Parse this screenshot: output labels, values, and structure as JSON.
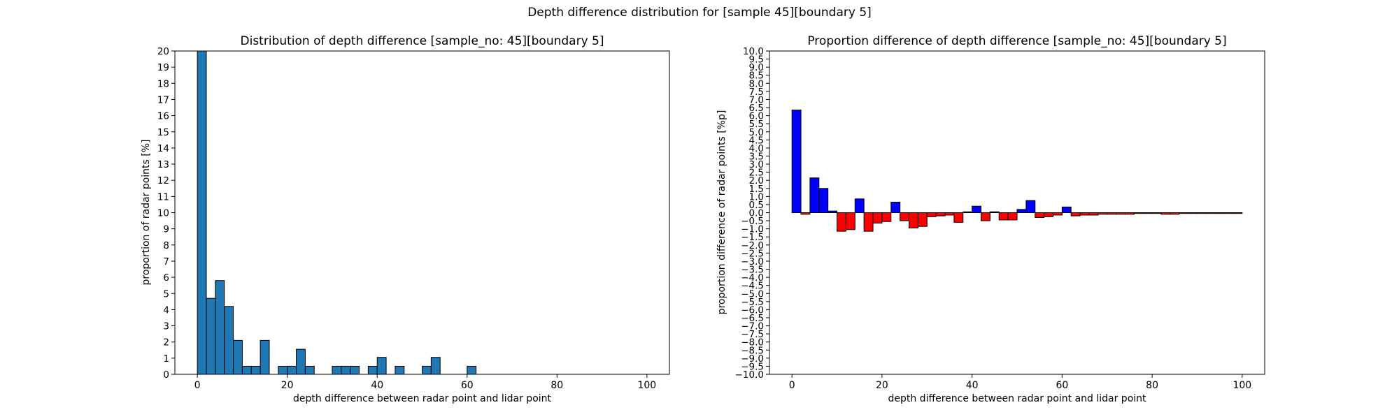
{
  "figure": {
    "suptitle": "Depth difference distribution for [sample 45][boundary 5]"
  },
  "chart_data": [
    {
      "type": "bar",
      "title": "Distribution of depth difference [sample_no: 45][boundary 5]",
      "xlabel": "depth difference between radar point and lidar point",
      "ylabel": "proportion of radar points [%]",
      "xlim": [
        -5,
        105
      ],
      "ylim": [
        0,
        20
      ],
      "xticks": [
        0,
        20,
        40,
        60,
        80,
        100
      ],
      "yticks": [
        0,
        1,
        2,
        3,
        4,
        5,
        6,
        7,
        8,
        9,
        10,
        11,
        12,
        13,
        14,
        15,
        16,
        17,
        18,
        19,
        20
      ],
      "bin_width": 2,
      "bin_starts": [
        0,
        2,
        4,
        6,
        8,
        10,
        12,
        14,
        16,
        18,
        20,
        22,
        24,
        26,
        28,
        30,
        32,
        34,
        36,
        38,
        40,
        42,
        44,
        46,
        48,
        50,
        52,
        54,
        56,
        58,
        60,
        62,
        64,
        66,
        68,
        70,
        72,
        74,
        76,
        78,
        80,
        82,
        84,
        86,
        88,
        90,
        92,
        94,
        96,
        98
      ],
      "values": [
        20.0,
        4.7,
        5.8,
        4.2,
        2.1,
        0.5,
        0.5,
        2.1,
        0.0,
        0.5,
        0.5,
        1.55,
        0.5,
        0.0,
        0.0,
        0.5,
        0.5,
        0.5,
        0.0,
        0.5,
        1.05,
        0.0,
        0.5,
        0.0,
        0.0,
        0.5,
        1.05,
        0.0,
        0.0,
        0.0,
        0.5,
        0.0,
        0.0,
        0.0,
        0.0,
        0.0,
        0.0,
        0.0,
        0.0,
        0.0,
        0.0,
        0.0,
        0.0,
        0.0,
        0.0,
        0.0,
        0.0,
        0.0,
        0.0,
        0.0
      ],
      "colors": {
        "bar": "#1f77b4",
        "edge": "#000000"
      },
      "grid": false
    },
    {
      "type": "bar",
      "title": "Proportion difference of depth difference [sample_no: 45][boundary 5]",
      "xlabel": "depth difference between radar point and lidar point",
      "ylabel": "proportion difference of radar points [%p]",
      "xlim": [
        -5,
        105
      ],
      "ylim": [
        -10,
        10
      ],
      "xticks": [
        0,
        20,
        40,
        60,
        80,
        100
      ],
      "yticks": [
        -10.0,
        -9.5,
        -9.0,
        -8.5,
        -8.0,
        -7.5,
        -7.0,
        -6.5,
        -6.0,
        -5.5,
        -5.0,
        -4.5,
        -4.0,
        -3.5,
        -3.0,
        -2.5,
        -2.0,
        -1.5,
        -1.0,
        -0.5,
        0.0,
        0.5,
        1.0,
        1.5,
        2.0,
        2.5,
        3.0,
        3.5,
        4.0,
        4.5,
        5.0,
        5.5,
        6.0,
        6.5,
        7.0,
        7.5,
        8.0,
        8.5,
        9.0,
        9.5,
        10.0
      ],
      "bin_width": 2,
      "bin_starts": [
        0,
        2,
        4,
        6,
        8,
        10,
        12,
        14,
        16,
        18,
        20,
        22,
        24,
        26,
        28,
        30,
        32,
        34,
        36,
        38,
        40,
        42,
        44,
        46,
        48,
        50,
        52,
        54,
        56,
        58,
        60,
        62,
        64,
        66,
        68,
        70,
        72,
        74,
        76,
        78,
        80,
        82,
        84,
        86,
        88,
        90,
        92,
        94,
        96,
        98
      ],
      "values": [
        6.35,
        -0.1,
        2.15,
        1.5,
        0.1,
        -1.15,
        -1.05,
        0.85,
        -1.15,
        -0.65,
        -0.55,
        0.65,
        -0.5,
        -0.95,
        -0.85,
        -0.25,
        -0.2,
        -0.15,
        -0.6,
        0.05,
        0.4,
        -0.5,
        0.05,
        -0.45,
        -0.45,
        0.2,
        0.75,
        -0.3,
        -0.25,
        -0.15,
        0.35,
        -0.2,
        -0.15,
        -0.15,
        -0.1,
        -0.1,
        -0.1,
        -0.1,
        -0.05,
        -0.05,
        -0.05,
        -0.1,
        -0.1,
        -0.05,
        -0.05,
        -0.05,
        -0.05,
        -0.05,
        -0.05,
        -0.05
      ],
      "colors": {
        "positive": "#0000ff",
        "negative": "#ff0000",
        "edge": "#000000"
      },
      "grid": false
    }
  ]
}
